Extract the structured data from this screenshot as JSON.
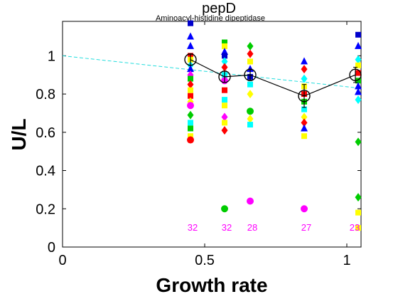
{
  "chart_data": {
    "type": "scatter",
    "title": "pepD",
    "subtitle": "Aminoacyl-histidine dipeptidase",
    "xlabel": "Growth rate",
    "ylabel": "U/L",
    "xlim": [
      0,
      1.05
    ],
    "ylim": [
      0,
      1.18
    ],
    "x_ticks": [
      0,
      0.5,
      1
    ],
    "x_tick_labels": [
      "0",
      "0.5",
      "1"
    ],
    "y_ticks": [
      0,
      0.2,
      0.4,
      0.6,
      0.8,
      1
    ],
    "y_tick_labels": [
      "0",
      "0.2",
      "0.4",
      "0.6",
      "0.8",
      "1"
    ],
    "grid": false,
    "fit_line": {
      "x": [
        0,
        1.05
      ],
      "y": [
        1.0,
        0.83
      ],
      "color": "#22dddd"
    },
    "mean_series": {
      "x": [
        0.45,
        0.57,
        0.66,
        0.85,
        1.03
      ],
      "y": [
        0.98,
        0.89,
        0.9,
        0.79,
        0.9
      ],
      "err": [
        0.03,
        0.03,
        0.03,
        0.06,
        0.04
      ]
    },
    "counts": [
      {
        "x": 0.46,
        "label": "32"
      },
      {
        "x": 0.58,
        "label": "32"
      },
      {
        "x": 0.67,
        "label": "28"
      },
      {
        "x": 0.86,
        "label": "27"
      },
      {
        "x": 1.03,
        "label": "23"
      }
    ],
    "count_color": "#ff00ff",
    "groups": [
      {
        "x": 0.45,
        "points": [
          {
            "y": 1.17,
            "color": "#0000cc",
            "shape": "square"
          },
          {
            "y": 1.1,
            "color": "#0000ff",
            "shape": "triangle"
          },
          {
            "y": 1.05,
            "color": "#0000ff",
            "shape": "triangle"
          },
          {
            "y": 1.0,
            "color": "#ff0000",
            "shape": "square"
          },
          {
            "y": 0.98,
            "color": "#ffff00",
            "shape": "square"
          },
          {
            "y": 0.95,
            "color": "#00ffff",
            "shape": "diamond"
          },
          {
            "y": 0.93,
            "color": "#0000ff",
            "shape": "triangle"
          },
          {
            "y": 0.9,
            "color": "#ff00ff",
            "shape": "diamond"
          },
          {
            "y": 0.88,
            "color": "#00cc00",
            "shape": "square"
          },
          {
            "y": 0.85,
            "color": "#ff0000",
            "shape": "diamond"
          },
          {
            "y": 0.82,
            "color": "#ffff00",
            "shape": "square"
          },
          {
            "y": 0.79,
            "color": "#ff0000",
            "shape": "square"
          },
          {
            "y": 0.76,
            "color": "#ffff00",
            "shape": "diamond"
          },
          {
            "y": 0.74,
            "color": "#ff00ff",
            "shape": "circle"
          },
          {
            "y": 0.69,
            "color": "#00cc00",
            "shape": "diamond"
          },
          {
            "y": 0.65,
            "color": "#00ffff",
            "shape": "square"
          },
          {
            "y": 0.62,
            "color": "#00cc00",
            "shape": "square"
          },
          {
            "y": 0.58,
            "color": "#ffff00",
            "shape": "square"
          },
          {
            "y": 0.56,
            "color": "#ff0000",
            "shape": "circle"
          }
        ]
      },
      {
        "x": 0.57,
        "points": [
          {
            "y": 1.07,
            "color": "#00cc00",
            "shape": "square"
          },
          {
            "y": 1.05,
            "color": "#ffff00",
            "shape": "square"
          },
          {
            "y": 1.02,
            "color": "#0000ff",
            "shape": "triangle"
          },
          {
            "y": 1.0,
            "color": "#0000cc",
            "shape": "square"
          },
          {
            "y": 0.97,
            "color": "#00ffff",
            "shape": "diamond"
          },
          {
            "y": 0.94,
            "color": "#ff0000",
            "shape": "diamond"
          },
          {
            "y": 0.9,
            "color": "#00ffff",
            "shape": "square"
          },
          {
            "y": 0.87,
            "color": "#ff00ff",
            "shape": "circle"
          },
          {
            "y": 0.82,
            "color": "#ff0000",
            "shape": "square"
          },
          {
            "y": 0.77,
            "color": "#00ffff",
            "shape": "square"
          },
          {
            "y": 0.74,
            "color": "#ffff00",
            "shape": "square"
          },
          {
            "y": 0.68,
            "color": "#ff00ff",
            "shape": "diamond"
          },
          {
            "y": 0.65,
            "color": "#ffff00",
            "shape": "square"
          },
          {
            "y": 0.61,
            "color": "#ff0000",
            "shape": "diamond"
          },
          {
            "y": 0.2,
            "color": "#00cc00",
            "shape": "circle"
          }
        ]
      },
      {
        "x": 0.66,
        "points": [
          {
            "y": 1.05,
            "color": "#00cc00",
            "shape": "diamond"
          },
          {
            "y": 1.01,
            "color": "#ff0000",
            "shape": "diamond"
          },
          {
            "y": 0.97,
            "color": "#ffff00",
            "shape": "square"
          },
          {
            "y": 0.93,
            "color": "#0000ff",
            "shape": "triangle"
          },
          {
            "y": 0.89,
            "color": "#0000cc",
            "shape": "square"
          },
          {
            "y": 0.85,
            "color": "#00ffff",
            "shape": "square"
          },
          {
            "y": 0.8,
            "color": "#ffff00",
            "shape": "diamond"
          },
          {
            "y": 0.71,
            "color": "#00cc00",
            "shape": "circle"
          },
          {
            "y": 0.67,
            "color": "#ffff00",
            "shape": "diamond"
          },
          {
            "y": 0.64,
            "color": "#00ffff",
            "shape": "square"
          },
          {
            "y": 0.24,
            "color": "#ff00ff",
            "shape": "circle"
          }
        ]
      },
      {
        "x": 0.85,
        "points": [
          {
            "y": 0.97,
            "color": "#0000ff",
            "shape": "triangle"
          },
          {
            "y": 0.93,
            "color": "#ff0000",
            "shape": "diamond"
          },
          {
            "y": 0.88,
            "color": "#00ffff",
            "shape": "diamond"
          },
          {
            "y": 0.84,
            "color": "#ffff00",
            "shape": "square"
          },
          {
            "y": 0.8,
            "color": "#ff0000",
            "shape": "square"
          },
          {
            "y": 0.76,
            "color": "#00cc00",
            "shape": "square"
          },
          {
            "y": 0.72,
            "color": "#00ffff",
            "shape": "square"
          },
          {
            "y": 0.68,
            "color": "#ffff00",
            "shape": "diamond"
          },
          {
            "y": 0.65,
            "color": "#ff0000",
            "shape": "diamond"
          },
          {
            "y": 0.62,
            "color": "#0000ff",
            "shape": "triangle"
          },
          {
            "y": 0.58,
            "color": "#ffff00",
            "shape": "square"
          },
          {
            "y": 0.2,
            "color": "#ff00ff",
            "shape": "circle"
          }
        ]
      },
      {
        "x": 1.04,
        "points": [
          {
            "y": 1.11,
            "color": "#0000cc",
            "shape": "square"
          },
          {
            "y": 1.05,
            "color": "#0000ff",
            "shape": "triangle"
          },
          {
            "y": 0.98,
            "color": "#00ffff",
            "shape": "diamond"
          },
          {
            "y": 0.95,
            "color": "#ffff00",
            "shape": "square"
          },
          {
            "y": 0.91,
            "color": "#ff0000",
            "shape": "square"
          },
          {
            "y": 0.87,
            "color": "#00cc00",
            "shape": "square"
          },
          {
            "y": 0.84,
            "color": "#0000ff",
            "shape": "triangle"
          },
          {
            "y": 0.81,
            "color": "#0000ff",
            "shape": "triangle"
          },
          {
            "y": 0.77,
            "color": "#00ffff",
            "shape": "diamond"
          },
          {
            "y": 0.55,
            "color": "#00cc00",
            "shape": "diamond"
          },
          {
            "y": 0.26,
            "color": "#00cc00",
            "shape": "diamond"
          },
          {
            "y": 0.18,
            "color": "#ffff00",
            "shape": "square"
          },
          {
            "y": 0.1,
            "color": "#ffff00",
            "shape": "square"
          }
        ]
      }
    ]
  }
}
